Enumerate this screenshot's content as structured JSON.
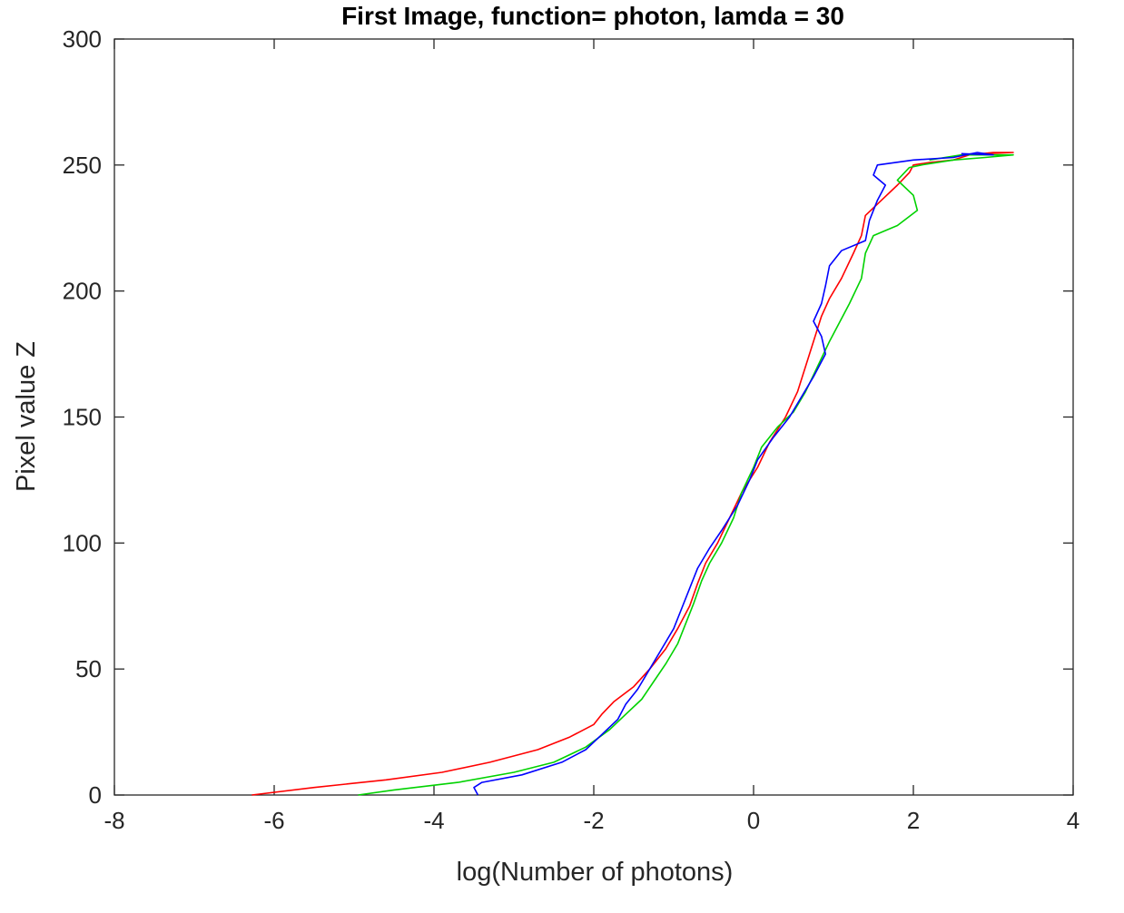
{
  "chart_data": {
    "type": "line",
    "title": "First Image, function= photon, lamda = 30",
    "xlabel": "log(Number of photons)",
    "ylabel": "Pixel value Z",
    "xlim": [
      -8,
      4
    ],
    "ylim": [
      0,
      300
    ],
    "xticks": [
      -8,
      -6,
      -4,
      -2,
      0,
      2,
      4
    ],
    "yticks": [
      0,
      50,
      100,
      150,
      200,
      250,
      300
    ],
    "xtick_labels": [
      "-8",
      "-6",
      "-4",
      "-2",
      "0",
      "2",
      "4"
    ],
    "ytick_labels": [
      "0",
      "50",
      "100",
      "150",
      "200",
      "250",
      "300"
    ],
    "grid": false,
    "box": true,
    "series": [
      {
        "color": "#ff0000",
        "points": [
          [
            -6.28,
            0
          ],
          [
            -5.5,
            3
          ],
          [
            -4.6,
            6
          ],
          [
            -3.9,
            9
          ],
          [
            -3.3,
            13
          ],
          [
            -2.7,
            18
          ],
          [
            -2.3,
            23
          ],
          [
            -2.0,
            28
          ],
          [
            -1.9,
            32
          ],
          [
            -1.75,
            37
          ],
          [
            -1.5,
            43
          ],
          [
            -1.3,
            50
          ],
          [
            -1.1,
            58
          ],
          [
            -0.95,
            66
          ],
          [
            -0.8,
            75
          ],
          [
            -0.7,
            84
          ],
          [
            -0.6,
            92
          ],
          [
            -0.45,
            100
          ],
          [
            -0.3,
            110
          ],
          [
            -0.15,
            120
          ],
          [
            0.05,
            130
          ],
          [
            0.2,
            140
          ],
          [
            0.4,
            150
          ],
          [
            0.55,
            160
          ],
          [
            0.65,
            170
          ],
          [
            0.75,
            180
          ],
          [
            0.85,
            190
          ],
          [
            0.95,
            197
          ],
          [
            1.1,
            205
          ],
          [
            1.25,
            215
          ],
          [
            1.35,
            222
          ],
          [
            1.4,
            230
          ],
          [
            1.6,
            236
          ],
          [
            1.8,
            242
          ],
          [
            1.95,
            247
          ],
          [
            2.0,
            250
          ],
          [
            2.2,
            251
          ],
          [
            2.5,
            252
          ],
          [
            2.7,
            254
          ],
          [
            3.0,
            255
          ],
          [
            3.25,
            255
          ],
          [
            2.9,
            254.5
          ],
          [
            2.7,
            254
          ]
        ]
      },
      {
        "color": "#00d200",
        "points": [
          [
            -4.95,
            0
          ],
          [
            -4.5,
            2
          ],
          [
            -3.7,
            5
          ],
          [
            -3.0,
            9
          ],
          [
            -2.5,
            13
          ],
          [
            -2.1,
            19
          ],
          [
            -1.8,
            26
          ],
          [
            -1.6,
            32
          ],
          [
            -1.4,
            38
          ],
          [
            -1.25,
            45
          ],
          [
            -1.1,
            52
          ],
          [
            -0.95,
            60
          ],
          [
            -0.85,
            68
          ],
          [
            -0.75,
            76
          ],
          [
            -0.65,
            85
          ],
          [
            -0.55,
            92
          ],
          [
            -0.4,
            100
          ],
          [
            -0.25,
            110
          ],
          [
            -0.15,
            120
          ],
          [
            0.0,
            130
          ],
          [
            0.1,
            138
          ],
          [
            0.3,
            146
          ],
          [
            0.5,
            152
          ],
          [
            0.65,
            160
          ],
          [
            0.8,
            170
          ],
          [
            0.95,
            180
          ],
          [
            1.2,
            195
          ],
          [
            1.35,
            205
          ],
          [
            1.4,
            215
          ],
          [
            1.5,
            222
          ],
          [
            1.8,
            226
          ],
          [
            2.05,
            232
          ],
          [
            2.0,
            238
          ],
          [
            1.8,
            244
          ],
          [
            1.95,
            249
          ],
          [
            2.1,
            250
          ],
          [
            2.5,
            252
          ],
          [
            2.9,
            253
          ],
          [
            3.25,
            254
          ],
          [
            2.6,
            254
          ],
          [
            2.2,
            252
          ]
        ]
      },
      {
        "color": "#0000ff",
        "points": [
          [
            -3.45,
            0
          ],
          [
            -3.5,
            3
          ],
          [
            -3.4,
            5
          ],
          [
            -2.9,
            8
          ],
          [
            -2.4,
            13
          ],
          [
            -2.1,
            18
          ],
          [
            -1.9,
            24
          ],
          [
            -1.7,
            30
          ],
          [
            -1.6,
            36
          ],
          [
            -1.45,
            42
          ],
          [
            -1.3,
            50
          ],
          [
            -1.15,
            58
          ],
          [
            -1.0,
            66
          ],
          [
            -0.9,
            74
          ],
          [
            -0.8,
            82
          ],
          [
            -0.7,
            90
          ],
          [
            -0.55,
            98
          ],
          [
            -0.4,
            105
          ],
          [
            -0.2,
            115
          ],
          [
            -0.05,
            125
          ],
          [
            0.05,
            133
          ],
          [
            0.25,
            142
          ],
          [
            0.45,
            150
          ],
          [
            0.6,
            158
          ],
          [
            0.75,
            166
          ],
          [
            0.9,
            175
          ],
          [
            0.85,
            182
          ],
          [
            0.75,
            188
          ],
          [
            0.85,
            195
          ],
          [
            0.9,
            202
          ],
          [
            0.95,
            210
          ],
          [
            1.1,
            216
          ],
          [
            1.4,
            220
          ],
          [
            1.45,
            228
          ],
          [
            1.55,
            236
          ],
          [
            1.65,
            242
          ],
          [
            1.5,
            246
          ],
          [
            1.55,
            250
          ],
          [
            2.0,
            252
          ],
          [
            2.5,
            253
          ],
          [
            2.8,
            255
          ],
          [
            3.0,
            254
          ],
          [
            2.6,
            254.5
          ]
        ]
      }
    ]
  }
}
